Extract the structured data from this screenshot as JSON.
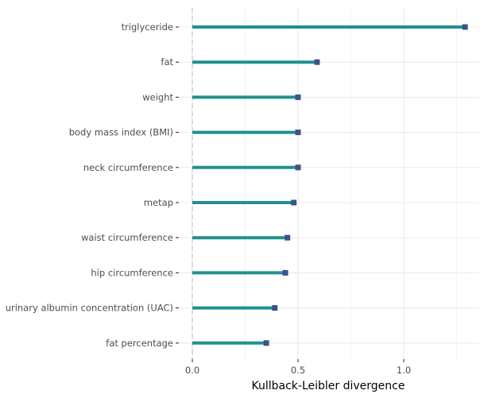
{
  "chart_data": {
    "type": "lollipop",
    "xlabel": "Kullback-Leibler divergence",
    "ylabel": "",
    "xlim": [
      0,
      1.3
    ],
    "x_ticks": [
      0.0,
      0.5,
      1.0
    ],
    "x_tick_labels": [
      "0.0",
      "0.5",
      "1.0"
    ],
    "grid": true,
    "orientation": "horizontal",
    "categories": [
      "triglyceride",
      "fat",
      "weight",
      "body mass index (BMI)",
      "neck circumference",
      "metap",
      "waist circumference",
      "hip circumference",
      "urinary albumin concentration (UAC)",
      "fat percentage"
    ],
    "values": [
      1.29,
      0.59,
      0.5,
      0.5,
      0.5,
      0.48,
      0.45,
      0.44,
      0.39,
      0.35
    ],
    "colors": {
      "stem": "#21908C",
      "point": "#3B528B",
      "zero_line": "#C8C8C8",
      "grid": "#EBEBEB"
    }
  }
}
